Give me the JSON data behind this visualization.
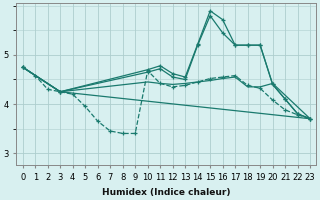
{
  "xlabel": "Humidex (Indice chaleur)",
  "bg_color": "#d8f0f0",
  "line_color": "#1a7a6e",
  "grid_color": "#aecece",
  "xlim": [
    -0.5,
    23.5
  ],
  "ylim": [
    2.75,
    6.05
  ],
  "yticks": [
    3,
    4,
    5
  ],
  "xticks": [
    0,
    1,
    2,
    3,
    4,
    5,
    6,
    7,
    8,
    9,
    10,
    11,
    12,
    13,
    14,
    15,
    16,
    17,
    18,
    19,
    20,
    21,
    22,
    23
  ],
  "lines": [
    {
      "x": [
        0,
        3,
        23
      ],
      "y": [
        4.75,
        4.25,
        3.7
      ],
      "linestyle": "-",
      "has_markers": false
    },
    {
      "x": [
        0,
        3,
        10,
        11,
        12,
        13,
        14,
        15,
        16,
        17,
        18,
        19,
        20,
        23
      ],
      "y": [
        4.75,
        4.25,
        4.45,
        4.42,
        4.4,
        4.42,
        4.45,
        4.48,
        4.52,
        4.55,
        4.35,
        4.35,
        4.42,
        3.7
      ],
      "linestyle": "-",
      "has_markers": false
    },
    {
      "x": [
        0,
        1,
        2,
        3,
        4,
        5,
        6,
        7,
        8,
        9,
        10,
        11,
        12,
        13,
        14,
        15,
        16,
        17,
        18,
        19,
        20,
        21,
        22,
        23
      ],
      "y": [
        4.75,
        4.58,
        4.3,
        4.25,
        4.2,
        3.95,
        3.65,
        3.45,
        3.4,
        3.4,
        4.68,
        4.42,
        4.35,
        4.38,
        4.45,
        4.52,
        4.55,
        4.58,
        4.38,
        4.32,
        4.08,
        3.88,
        3.78,
        3.7
      ],
      "linestyle": "--",
      "has_markers": true
    },
    {
      "x": [
        0,
        3,
        10,
        11,
        12,
        13,
        14,
        15,
        16,
        17,
        18,
        19,
        20,
        21,
        22,
        23
      ],
      "y": [
        4.75,
        4.25,
        4.65,
        4.72,
        4.55,
        4.5,
        5.2,
        5.8,
        5.45,
        5.2,
        5.2,
        5.2,
        4.4,
        4.1,
        3.8,
        3.7
      ],
      "linestyle": "-",
      "has_markers": true
    },
    {
      "x": [
        0,
        3,
        10,
        11,
        12,
        13,
        14,
        15,
        16,
        17,
        18,
        19,
        20,
        21,
        22,
        23
      ],
      "y": [
        4.75,
        4.25,
        4.7,
        4.78,
        4.62,
        4.55,
        5.22,
        5.9,
        5.72,
        5.2,
        5.2,
        5.2,
        4.4,
        4.1,
        3.8,
        3.7
      ],
      "linestyle": "-",
      "has_markers": true
    }
  ]
}
